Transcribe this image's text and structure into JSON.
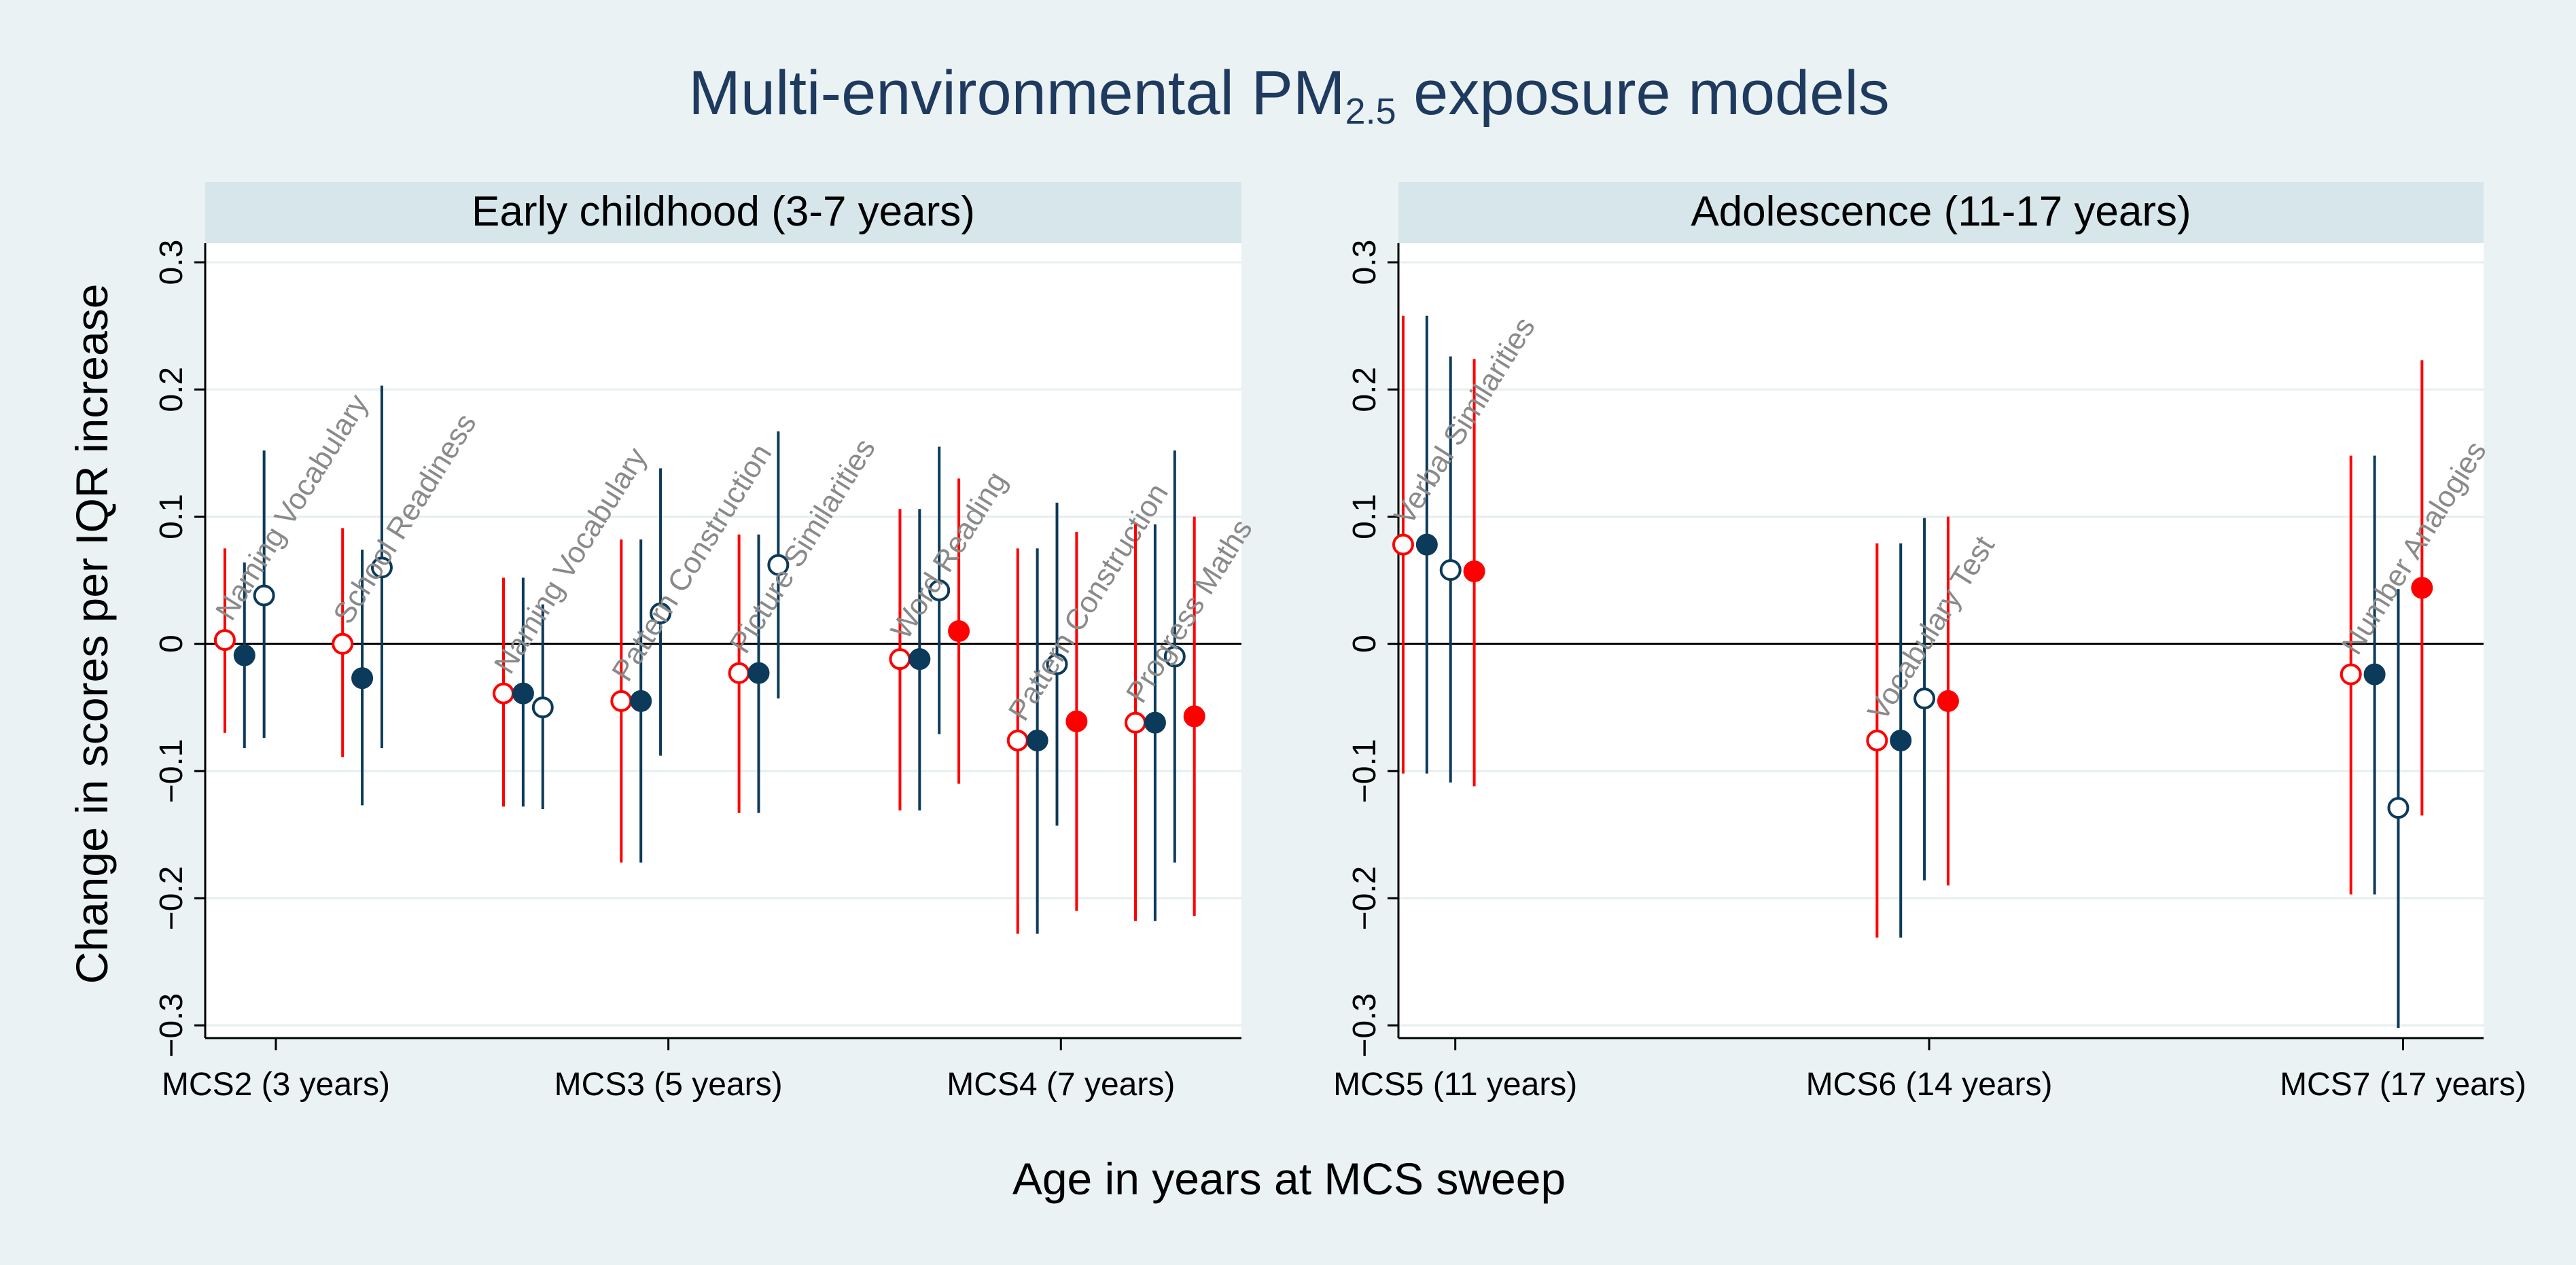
{
  "colors": {
    "outer_bg": "#eaf2f3",
    "plot_bg": "#ffffff",
    "strip_bg": "#d7e6eb",
    "grid": "#e6eef0",
    "red": "#ff0000",
    "navy": "#0c3a5a",
    "label_gray": "#8a8a8a",
    "title": "#1f3a5f"
  },
  "chart_data": {
    "type": "scatter",
    "title": "Multi-environmental PM",
    "title_subscript": "2.5",
    "title_suffix": " exposure models",
    "ylabel": "Change in scores per IQR increase",
    "xlabel": "Age in years at MCS sweep",
    "ylim": [
      -0.31,
      0.315
    ],
    "yticks": [
      -0.3,
      -0.2,
      -0.1,
      0,
      0.1,
      0.2,
      0.3
    ],
    "ytick_labels": [
      "−0.3",
      "−0.2",
      "−0.1",
      "0",
      "0.1",
      "0.2",
      "0.3"
    ],
    "reference_line": 0,
    "series_styles": [
      {
        "name": "series-1",
        "marker": "hollow",
        "color": "red"
      },
      {
        "name": "series-2",
        "marker": "filled",
        "color": "navy"
      },
      {
        "name": "series-3",
        "marker": "hollow",
        "color": "navy"
      },
      {
        "name": "series-4",
        "marker": "filled",
        "color": "red"
      }
    ],
    "panels": [
      {
        "title": "Early childhood (3-7 years)",
        "xlim": [
          0.82,
          3.46
        ],
        "sweeps": [
          {
            "label": "MCS2 (3 years)",
            "x": 1
          },
          {
            "label": "MCS3 (5 years)",
            "x": 2
          },
          {
            "label": "MCS4 (7 years)",
            "x": 3
          }
        ],
        "groups": [
          {
            "test": "Naming Vocabulary",
            "x0": 0.87,
            "estimates": [
              {
                "style": 0,
                "est": 0.003,
                "lo": -0.07,
                "hi": 0.075
              },
              {
                "style": 1,
                "est": -0.009,
                "lo": -0.082,
                "hi": 0.064
              },
              {
                "style": 2,
                "est": 0.038,
                "lo": -0.074,
                "hi": 0.152
              }
            ]
          },
          {
            "test": "School Readiness",
            "x0": 1.17,
            "estimates": [
              {
                "style": 0,
                "est": 0.0,
                "lo": -0.089,
                "hi": 0.091
              },
              {
                "style": 1,
                "est": -0.027,
                "lo": -0.127,
                "hi": 0.074
              },
              {
                "style": 2,
                "est": 0.06,
                "lo": -0.082,
                "hi": 0.203
              }
            ]
          },
          {
            "test": "Naming Vocabulary",
            "x0": 1.58,
            "estimates": [
              {
                "style": 0,
                "est": -0.039,
                "lo": -0.128,
                "hi": 0.052
              },
              {
                "style": 1,
                "est": -0.039,
                "lo": -0.128,
                "hi": 0.052
              },
              {
                "style": 2,
                "est": -0.05,
                "lo": -0.13,
                "hi": 0.031
              }
            ]
          },
          {
            "test": "Pattern Construction",
            "x0": 1.88,
            "estimates": [
              {
                "style": 0,
                "est": -0.045,
                "lo": -0.172,
                "hi": 0.082
              },
              {
                "style": 1,
                "est": -0.045,
                "lo": -0.172,
                "hi": 0.082
              },
              {
                "style": 2,
                "est": 0.024,
                "lo": -0.088,
                "hi": 0.138
              }
            ]
          },
          {
            "test": "Picture Similarities",
            "x0": 2.18,
            "estimates": [
              {
                "style": 0,
                "est": -0.023,
                "lo": -0.133,
                "hi": 0.086
              },
              {
                "style": 1,
                "est": -0.023,
                "lo": -0.133,
                "hi": 0.086
              },
              {
                "style": 2,
                "est": 0.062,
                "lo": -0.043,
                "hi": 0.167
              }
            ]
          },
          {
            "test": "Word Reading",
            "x0": 2.59,
            "estimates": [
              {
                "style": 0,
                "est": -0.012,
                "lo": -0.131,
                "hi": 0.106
              },
              {
                "style": 1,
                "est": -0.012,
                "lo": -0.131,
                "hi": 0.106
              },
              {
                "style": 2,
                "est": 0.042,
                "lo": -0.071,
                "hi": 0.155
              },
              {
                "style": 3,
                "est": 0.01,
                "lo": -0.11,
                "hi": 0.13
              }
            ]
          },
          {
            "test": "Pattern Construction",
            "x0": 2.89,
            "estimates": [
              {
                "style": 0,
                "est": -0.076,
                "lo": -0.228,
                "hi": 0.075
              },
              {
                "style": 1,
                "est": -0.076,
                "lo": -0.228,
                "hi": 0.075
              },
              {
                "style": 2,
                "est": -0.016,
                "lo": -0.143,
                "hi": 0.111
              },
              {
                "style": 3,
                "est": -0.061,
                "lo": -0.21,
                "hi": 0.088
              }
            ]
          },
          {
            "test": "Progress Maths",
            "x0": 3.19,
            "estimates": [
              {
                "style": 0,
                "est": -0.062,
                "lo": -0.218,
                "hi": 0.094
              },
              {
                "style": 1,
                "est": -0.062,
                "lo": -0.218,
                "hi": 0.094
              },
              {
                "style": 2,
                "est": -0.01,
                "lo": -0.172,
                "hi": 0.152
              },
              {
                "style": 3,
                "est": -0.057,
                "lo": -0.214,
                "hi": 0.1
              }
            ]
          }
        ]
      },
      {
        "title": "Adolescence (11-17 years)",
        "xlim": [
          4.88,
          7.17
        ],
        "sweeps": [
          {
            "label": "MCS5 (11 years)",
            "x": 5
          },
          {
            "label": "MCS6 (14 years)",
            "x": 6
          },
          {
            "label": "MCS7 (17 years)",
            "x": 7
          }
        ],
        "groups": [
          {
            "test": "Verbal Similarities",
            "x0": 4.89,
            "estimates": [
              {
                "style": 0,
                "est": 0.078,
                "lo": -0.102,
                "hi": 0.258
              },
              {
                "style": 1,
                "est": 0.078,
                "lo": -0.102,
                "hi": 0.258
              },
              {
                "style": 2,
                "est": 0.058,
                "lo": -0.109,
                "hi": 0.226
              },
              {
                "style": 3,
                "est": 0.057,
                "lo": -0.112,
                "hi": 0.224
              }
            ]
          },
          {
            "test": "Vocabulary Test",
            "x0": 5.89,
            "estimates": [
              {
                "style": 0,
                "est": -0.076,
                "lo": -0.231,
                "hi": 0.079
              },
              {
                "style": 1,
                "est": -0.076,
                "lo": -0.231,
                "hi": 0.079
              },
              {
                "style": 2,
                "est": -0.043,
                "lo": -0.186,
                "hi": 0.099
              },
              {
                "style": 3,
                "est": -0.045,
                "lo": -0.19,
                "hi": 0.1
              }
            ]
          },
          {
            "test": "Number Analogies",
            "x0": 6.89,
            "estimates": [
              {
                "style": 0,
                "est": -0.024,
                "lo": -0.197,
                "hi": 0.148
              },
              {
                "style": 1,
                "est": -0.024,
                "lo": -0.197,
                "hi": 0.148
              },
              {
                "style": 2,
                "est": -0.129,
                "lo": -0.302,
                "hi": 0.043
              },
              {
                "style": 3,
                "est": 0.044,
                "lo": -0.135,
                "hi": 0.223
              }
            ]
          }
        ]
      }
    ]
  }
}
